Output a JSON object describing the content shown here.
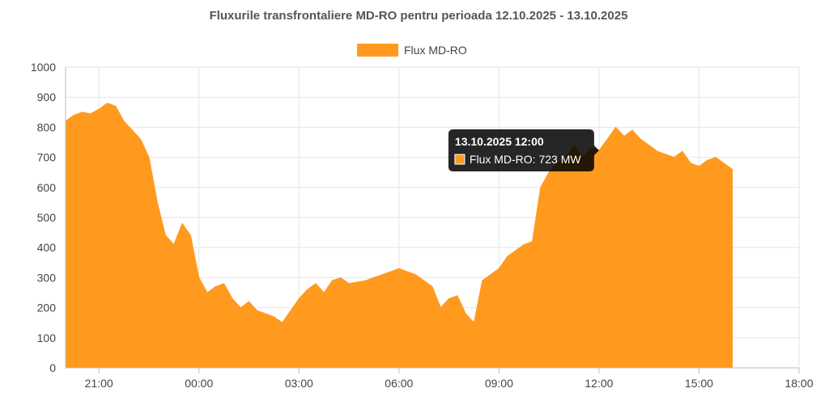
{
  "chart_data": {
    "type": "area",
    "title": "Fluxurile transfrontaliere MD-RO pentru perioada 12.10.2025 - 13.10.2025",
    "xlabel": "",
    "ylabel": "",
    "ylim": [
      0,
      1000
    ],
    "y_ticks": [
      "0",
      "100",
      "200",
      "300",
      "400",
      "500",
      "600",
      "700",
      "800",
      "900",
      "1000"
    ],
    "x_range": [
      "12.10.2025 20:00",
      "13.10.2025 18:00"
    ],
    "x_ticks": [
      {
        "t": "12.10.2025 21:00",
        "label": "21:00"
      },
      {
        "t": "13.10.2025 00:00",
        "label": "00:00"
      },
      {
        "t": "13.10.2025 03:00",
        "label": "03:00"
      },
      {
        "t": "13.10.2025 06:00",
        "label": "06:00"
      },
      {
        "t": "13.10.2025 09:00",
        "label": "09:00"
      },
      {
        "t": "13.10.2025 12:00",
        "label": "12:00"
      },
      {
        "t": "13.10.2025 15:00",
        "label": "15:00"
      },
      {
        "t": "13.10.2025 18:00",
        "label": "18:00"
      }
    ],
    "grid": true,
    "legend_position": "top",
    "series": [
      {
        "name": "Flux MD-RO",
        "color": "#ff9a1f",
        "points": [
          [
            "12.10.2025 20:00",
            820
          ],
          [
            "12.10.2025 20:15",
            840
          ],
          [
            "12.10.2025 20:30",
            850
          ],
          [
            "12.10.2025 20:45",
            845
          ],
          [
            "12.10.2025 21:00",
            860
          ],
          [
            "12.10.2025 21:15",
            880
          ],
          [
            "12.10.2025 21:30",
            870
          ],
          [
            "12.10.2025 21:45",
            820
          ],
          [
            "12.10.2025 22:00",
            790
          ],
          [
            "12.10.2025 22:15",
            760
          ],
          [
            "12.10.2025 22:30",
            700
          ],
          [
            "12.10.2025 22:45",
            550
          ],
          [
            "12.10.2025 23:00",
            440
          ],
          [
            "12.10.2025 23:15",
            410
          ],
          [
            "12.10.2025 23:30",
            480
          ],
          [
            "12.10.2025 23:45",
            440
          ],
          [
            "13.10.2025 00:00",
            300
          ],
          [
            "13.10.2025 00:15",
            250
          ],
          [
            "13.10.2025 00:30",
            270
          ],
          [
            "13.10.2025 00:45",
            280
          ],
          [
            "13.10.2025 01:00",
            230
          ],
          [
            "13.10.2025 01:15",
            200
          ],
          [
            "13.10.2025 01:30",
            220
          ],
          [
            "13.10.2025 01:45",
            190
          ],
          [
            "13.10.2025 02:00",
            180
          ],
          [
            "13.10.2025 02:15",
            170
          ],
          [
            "13.10.2025 02:30",
            150
          ],
          [
            "13.10.2025 02:45",
            190
          ],
          [
            "13.10.2025 03:00",
            230
          ],
          [
            "13.10.2025 03:15",
            260
          ],
          [
            "13.10.2025 03:30",
            280
          ],
          [
            "13.10.2025 03:45",
            250
          ],
          [
            "13.10.2025 04:00",
            290
          ],
          [
            "13.10.2025 04:15",
            300
          ],
          [
            "13.10.2025 04:30",
            280
          ],
          [
            "13.10.2025 04:45",
            285
          ],
          [
            "13.10.2025 05:00",
            290
          ],
          [
            "13.10.2025 05:15",
            300
          ],
          [
            "13.10.2025 05:30",
            310
          ],
          [
            "13.10.2025 05:45",
            320
          ],
          [
            "13.10.2025 06:00",
            330
          ],
          [
            "13.10.2025 06:15",
            320
          ],
          [
            "13.10.2025 06:30",
            310
          ],
          [
            "13.10.2025 06:45",
            290
          ],
          [
            "13.10.2025 07:00",
            270
          ],
          [
            "13.10.2025 07:15",
            200
          ],
          [
            "13.10.2025 07:30",
            230
          ],
          [
            "13.10.2025 07:45",
            240
          ],
          [
            "13.10.2025 08:00",
            180
          ],
          [
            "13.10.2025 08:15",
            150
          ],
          [
            "13.10.2025 08:30",
            290
          ],
          [
            "13.10.2025 08:45",
            310
          ],
          [
            "13.10.2025 09:00",
            330
          ],
          [
            "13.10.2025 09:15",
            370
          ],
          [
            "13.10.2025 09:30",
            390
          ],
          [
            "13.10.2025 09:45",
            410
          ],
          [
            "13.10.2025 10:00",
            420
          ],
          [
            "13.10.2025 10:15",
            600
          ],
          [
            "13.10.2025 10:30",
            650
          ],
          [
            "13.10.2025 10:45",
            680
          ],
          [
            "13.10.2025 11:00",
            700
          ],
          [
            "13.10.2025 11:15",
            740
          ],
          [
            "13.10.2025 11:30",
            700
          ],
          [
            "13.10.2025 11:45",
            730
          ],
          [
            "13.10.2025 12:00",
            723
          ],
          [
            "13.10.2025 12:15",
            760
          ],
          [
            "13.10.2025 12:30",
            800
          ],
          [
            "13.10.2025 12:45",
            770
          ],
          [
            "13.10.2025 13:00",
            790
          ],
          [
            "13.10.2025 13:15",
            760
          ],
          [
            "13.10.2025 13:30",
            740
          ],
          [
            "13.10.2025 13:45",
            720
          ],
          [
            "13.10.2025 14:00",
            710
          ],
          [
            "13.10.2025 14:15",
            700
          ],
          [
            "13.10.2025 14:30",
            720
          ],
          [
            "13.10.2025 14:45",
            680
          ],
          [
            "13.10.2025 15:00",
            670
          ],
          [
            "13.10.2025 15:15",
            690
          ],
          [
            "13.10.2025 15:30",
            700
          ],
          [
            "13.10.2025 15:45",
            680
          ],
          [
            "13.10.2025 16:00",
            660
          ]
        ]
      }
    ],
    "tooltip": {
      "title": "13.10.2025 12:00",
      "label": "Flux MD-RO: 723 MW",
      "anchor_time": "13.10.2025 12:00",
      "anchor_value": 723
    }
  }
}
